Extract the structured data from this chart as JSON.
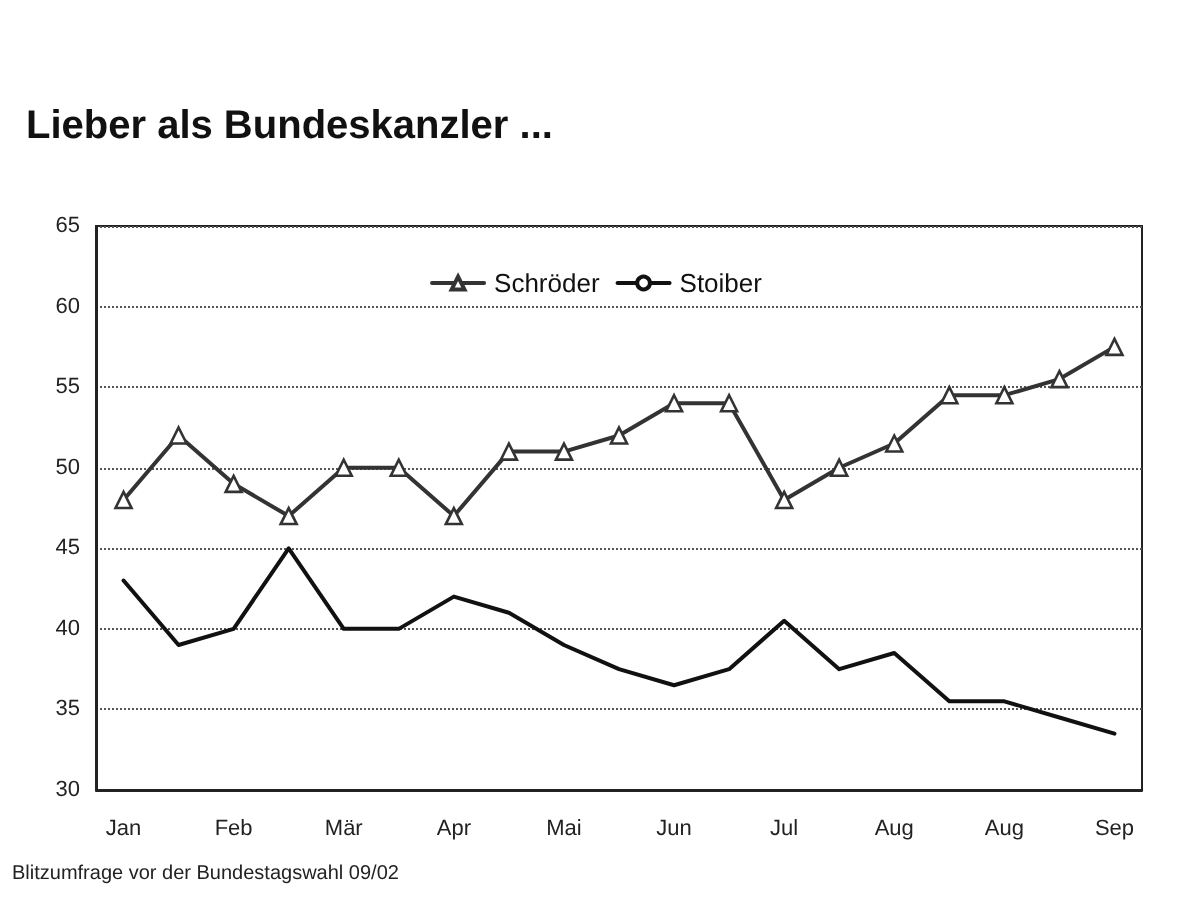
{
  "chart_data": {
    "type": "line",
    "title": "Lieber als Bundeskanzler ...",
    "categories": [
      "Jan",
      null,
      "Feb",
      null,
      "Mär",
      null,
      "Apr",
      null,
      "Mai",
      null,
      "Jun",
      null,
      "Jul",
      null,
      "Aug",
      null,
      "Aug",
      null,
      "Sep"
    ],
    "series": [
      {
        "name": "Schröder",
        "color": "#333333",
        "marker": "triangle",
        "values": [
          48,
          52,
          49,
          47,
          50,
          50,
          47,
          51,
          51,
          52,
          54,
          54,
          48,
          50,
          51.5,
          54.5,
          54.5,
          55.5,
          57.5
        ]
      },
      {
        "name": "Stoiber",
        "color": "#111111",
        "marker": "none",
        "values": [
          43,
          39,
          40,
          45,
          40,
          40,
          42,
          41,
          39,
          37.5,
          36.5,
          37.5,
          40.5,
          37.5,
          38.5,
          35.5,
          35.5,
          34.5,
          33.5
        ]
      }
    ],
    "ylim": [
      30,
      65
    ],
    "yticks": [
      30,
      35,
      40,
      45,
      50,
      55,
      60,
      65
    ],
    "grid": "y",
    "legend": "top",
    "annotations": [
      "Blitzumfrage vor der Bundestagswahl 09/02"
    ]
  }
}
